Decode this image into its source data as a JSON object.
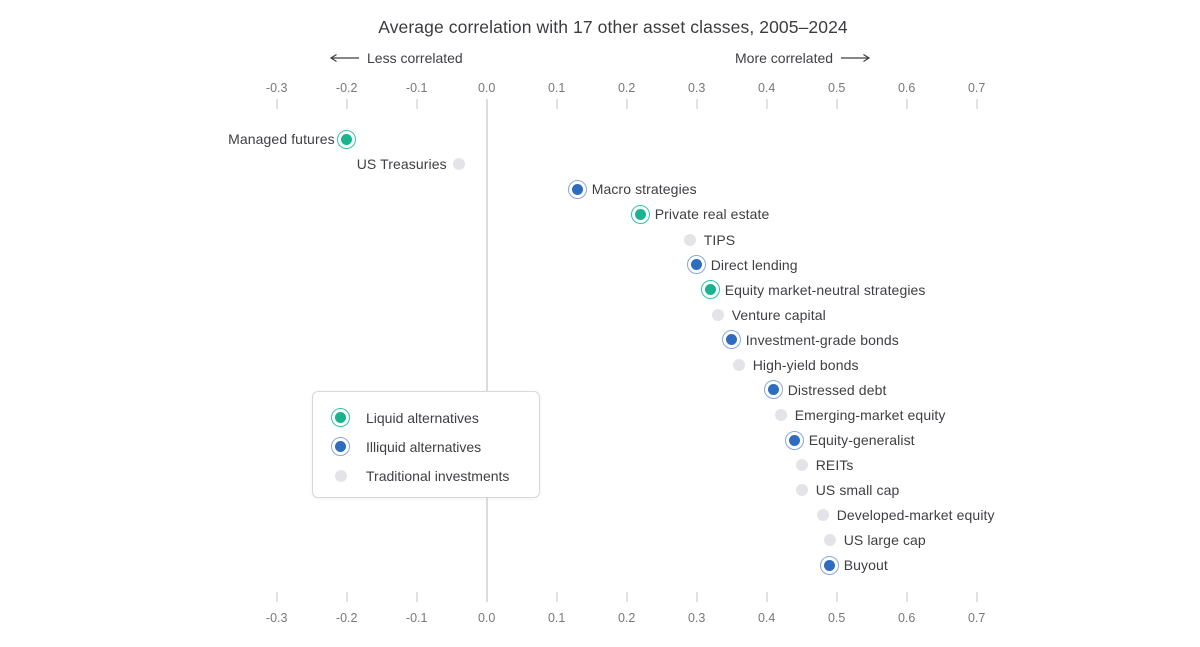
{
  "title": "Average correlation with 17 other asset classes, 2005–2024",
  "direction_labels": {
    "less": "Less correlated",
    "more": "More correlated"
  },
  "colors": {
    "liquid_fill": "#1ab28f",
    "liquid_ring": "#2fc7a1",
    "illiquid_fill": "#2d6cbe",
    "illiquid_ring": "#88a7d8",
    "traditional_fill": "#e4e4e8",
    "zero_line": "#b9babd",
    "tick_mark": "#c5c6c9",
    "tick_label": "#77787c",
    "text": "#3e3f43"
  },
  "legend": {
    "items": [
      {
        "label": "Liquid alternatives",
        "category": "liquid"
      },
      {
        "label": "Illiquid alternatives",
        "category": "illiquid"
      },
      {
        "label": "Traditional investments",
        "category": "traditional"
      }
    ]
  },
  "chart_data": {
    "type": "scatter",
    "title": "Average correlation with 17 other asset classes, 2005–2024",
    "xlabel": "Average correlation",
    "xlim": [
      -0.3,
      0.7
    ],
    "grid": false,
    "legend_position": "middle-left box",
    "axis_note": "identical tick rows at top and bottom; vertical reference line at 0.0",
    "ticks": [
      {
        "value": -0.3,
        "label": "-0.3"
      },
      {
        "value": -0.2,
        "label": "-0.2"
      },
      {
        "value": -0.1,
        "label": "-0.1"
      },
      {
        "value": 0.0,
        "label": "0.0"
      },
      {
        "value": 0.1,
        "label": "0.1"
      },
      {
        "value": 0.2,
        "label": "0.2"
      },
      {
        "value": 0.3,
        "label": "0.3"
      },
      {
        "value": 0.4,
        "label": "0.4"
      },
      {
        "value": 0.5,
        "label": "0.5"
      },
      {
        "value": 0.6,
        "label": "0.6"
      },
      {
        "value": 0.7,
        "label": "0.7"
      }
    ],
    "points": [
      {
        "label": "Managed futures",
        "value": -0.2,
        "category": "liquid",
        "label_side": "left"
      },
      {
        "label": "US Treasuries",
        "value": -0.04,
        "category": "traditional",
        "label_side": "left"
      },
      {
        "label": "Macro strategies",
        "value": 0.13,
        "category": "illiquid",
        "label_side": "right"
      },
      {
        "label": "Private real estate",
        "value": 0.22,
        "category": "liquid",
        "label_side": "right"
      },
      {
        "label": "TIPS",
        "value": 0.29,
        "category": "traditional",
        "label_side": "right"
      },
      {
        "label": "Direct lending",
        "value": 0.3,
        "category": "illiquid",
        "label_side": "right"
      },
      {
        "label": "Equity market-neutral strategies",
        "value": 0.32,
        "category": "liquid",
        "label_side": "right"
      },
      {
        "label": "Venture capital",
        "value": 0.33,
        "category": "traditional",
        "label_side": "right"
      },
      {
        "label": "Investment-grade bonds",
        "value": 0.35,
        "category": "illiquid",
        "label_side": "right"
      },
      {
        "label": "High-yield bonds",
        "value": 0.36,
        "category": "traditional",
        "label_side": "right"
      },
      {
        "label": "Distressed debt",
        "value": 0.41,
        "category": "illiquid",
        "label_side": "right"
      },
      {
        "label": "Emerging-market equity",
        "value": 0.42,
        "category": "traditional",
        "label_side": "right"
      },
      {
        "label": "Equity-generalist",
        "value": 0.44,
        "category": "illiquid",
        "label_side": "right"
      },
      {
        "label": "REITs",
        "value": 0.45,
        "category": "traditional",
        "label_side": "right"
      },
      {
        "label": "US small cap",
        "value": 0.45,
        "category": "traditional",
        "label_side": "right"
      },
      {
        "label": "Developed-market equity",
        "value": 0.48,
        "category": "traditional",
        "label_side": "right"
      },
      {
        "label": "US large cap",
        "value": 0.49,
        "category": "traditional",
        "label_side": "right"
      },
      {
        "label": "Buyout",
        "value": 0.49,
        "category": "illiquid",
        "label_side": "right"
      }
    ]
  }
}
